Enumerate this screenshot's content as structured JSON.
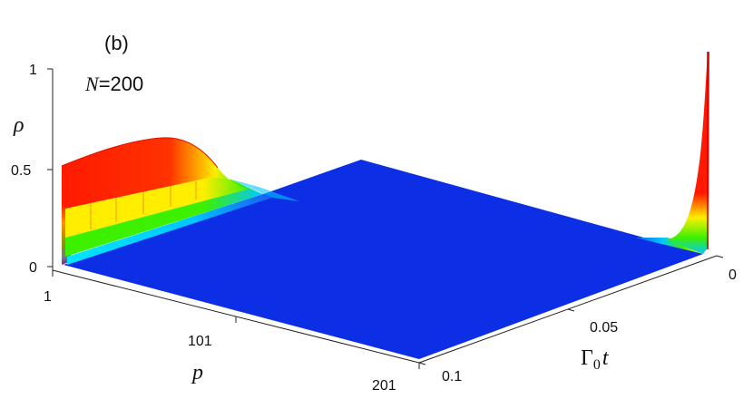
{
  "chart_data": {
    "type": "surface3d",
    "panel_label": "(b)",
    "annotation": {
      "prefix": "N",
      "suffix": "=200"
    },
    "x_axis": {
      "label": "p",
      "range": [
        1,
        201
      ],
      "ticks": [
        1,
        101,
        201
      ],
      "tick_labels": [
        "1",
        "101",
        "201"
      ]
    },
    "y_axis": {
      "label": "Γ0t",
      "label_base": "Γ",
      "label_sub": "0",
      "label_var": "t",
      "range": [
        0,
        0.1
      ],
      "ticks": [
        0,
        0.05,
        0.1
      ],
      "tick_labels": [
        "0",
        "0.05",
        "0.1"
      ]
    },
    "z_axis": {
      "label": "ρ",
      "range": [
        0,
        1
      ],
      "ticks": [
        0,
        0.5,
        1
      ],
      "tick_labels": [
        "0",
        "0.5",
        "1"
      ]
    },
    "surface_features": {
      "near_p1": {
        "p": [
          1,
          15
        ],
        "rho_max": 0.62,
        "t_range": [
          0.04,
          0.1
        ]
      },
      "spike_p201_t0": {
        "p": 201,
        "t": 0,
        "rho": 1.0
      },
      "background_rho": 0.0
    },
    "colormap": [
      "#0c2fe6",
      "#00c8ff",
      "#3df000",
      "#ffee00",
      "#ff1a00"
    ],
    "grid": false
  }
}
